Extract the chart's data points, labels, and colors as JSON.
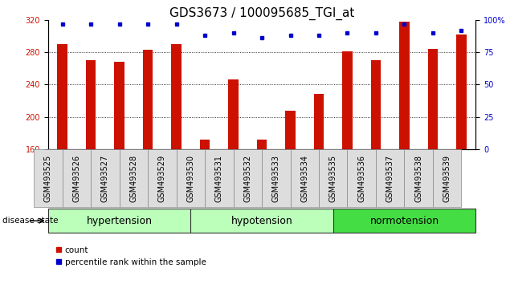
{
  "title": "GDS3673 / 100095685_TGI_at",
  "samples": [
    "GSM493525",
    "GSM493526",
    "GSM493527",
    "GSM493528",
    "GSM493529",
    "GSM493530",
    "GSM493531",
    "GSM493532",
    "GSM493533",
    "GSM493534",
    "GSM493535",
    "GSM493536",
    "GSM493537",
    "GSM493538",
    "GSM493539"
  ],
  "counts": [
    290,
    270,
    268,
    283,
    290,
    172,
    246,
    172,
    208,
    228,
    281,
    270,
    318,
    284,
    302
  ],
  "percentiles": [
    97,
    97,
    97,
    97,
    97,
    88,
    90,
    86,
    88,
    88,
    90,
    90,
    97,
    90,
    92
  ],
  "groups": [
    {
      "label": "hypertension",
      "indices": [
        0,
        1,
        2,
        3,
        4
      ],
      "color": "#bbffbb"
    },
    {
      "label": "hypotension",
      "indices": [
        5,
        6,
        7,
        8,
        9
      ],
      "color": "#ccffcc"
    },
    {
      "label": "normotension",
      "indices": [
        10,
        11,
        12,
        13,
        14
      ],
      "color": "#44dd44"
    }
  ],
  "bar_color": "#cc1100",
  "dot_color": "#0000cc",
  "ylim_left": [
    160,
    320
  ],
  "ylim_right": [
    0,
    100
  ],
  "yticks_left": [
    160,
    200,
    240,
    280,
    320
  ],
  "yticks_right": [
    0,
    25,
    50,
    75,
    100
  ],
  "bar_width": 0.35,
  "title_fontsize": 11,
  "tick_fontsize": 7,
  "group_label_fontsize": 9,
  "legend_fontsize": 7.5
}
